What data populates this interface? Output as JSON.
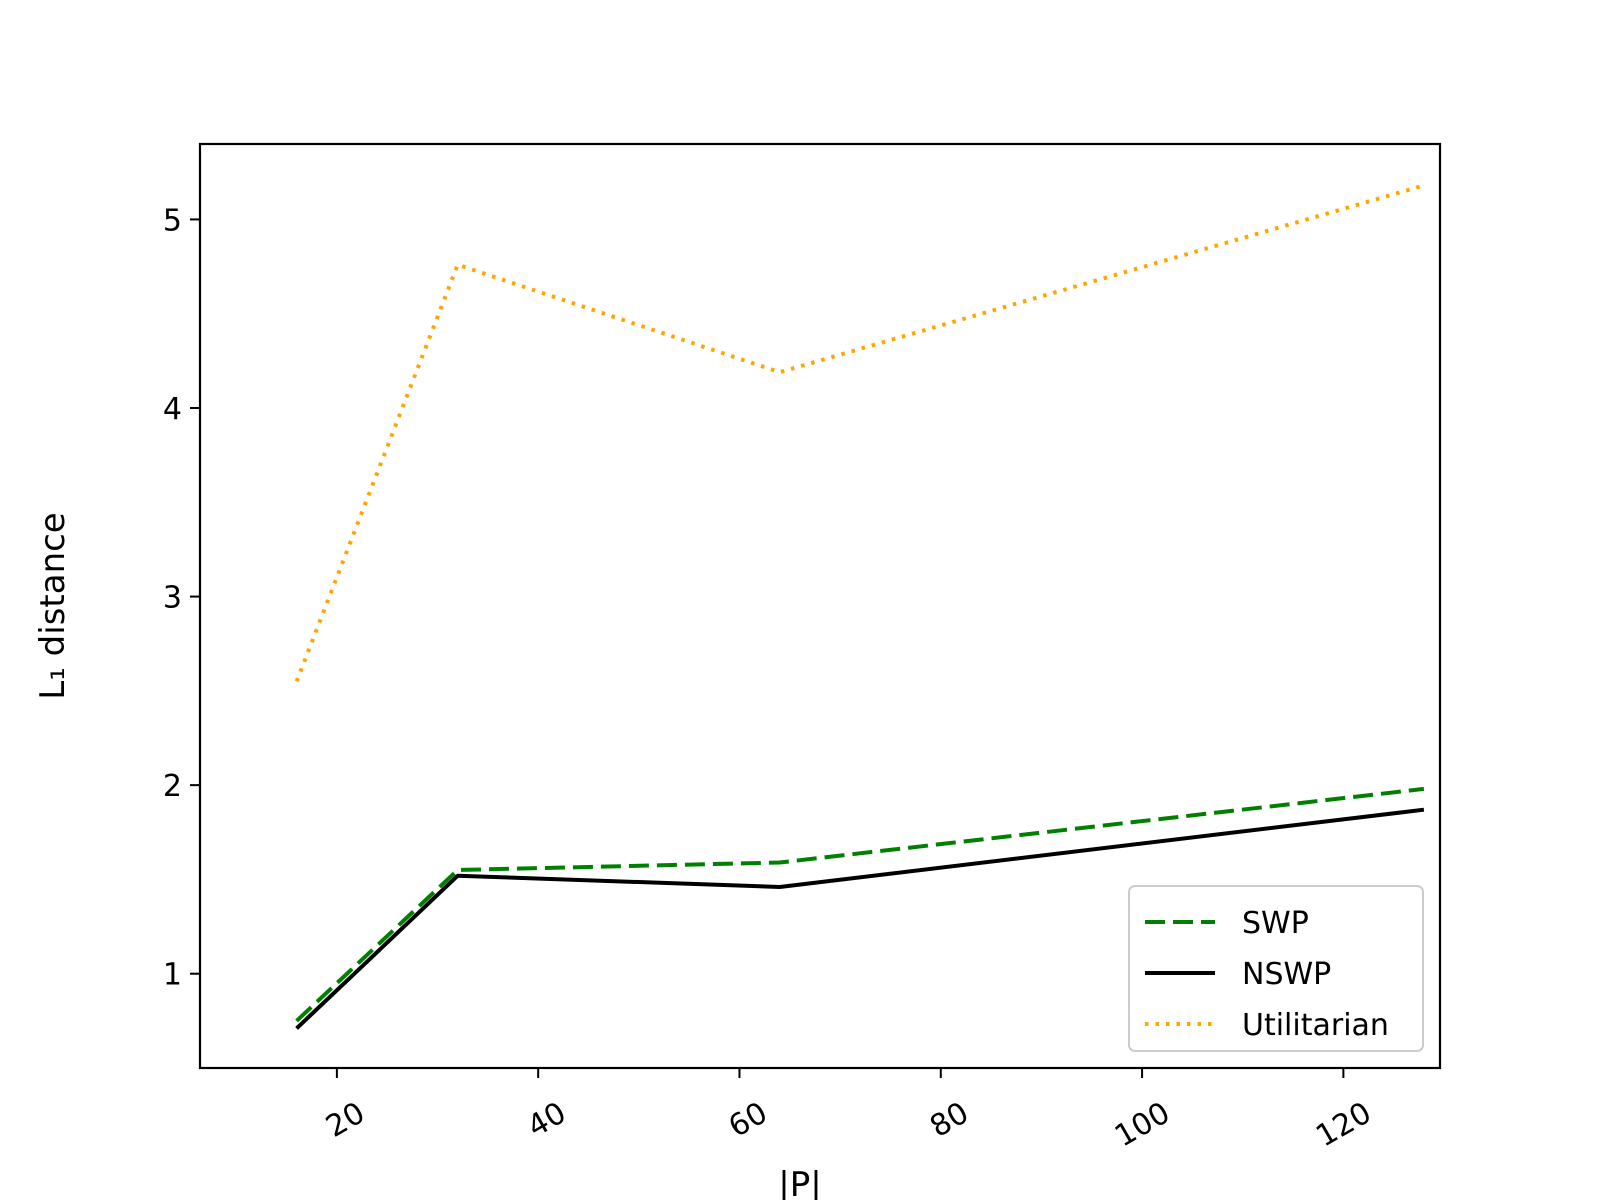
{
  "chart_data": {
    "type": "line",
    "xlabel": "|P|",
    "ylabel": "L₁ distance",
    "x": [
      16,
      32,
      64,
      128
    ],
    "xlim": [
      6.4,
      129.6
    ],
    "ylim": [
      0.5,
      5.4
    ],
    "xticks": [
      20,
      40,
      60,
      80,
      100,
      120
    ],
    "yticks": [
      1,
      2,
      3,
      4,
      5
    ],
    "grid": false,
    "legend_position": "lower-right",
    "series": [
      {
        "name": "SWP",
        "values": [
          0.75,
          1.55,
          1.59,
          1.98
        ],
        "color": "#008000",
        "style": "dashed"
      },
      {
        "name": "NSWP",
        "values": [
          0.71,
          1.52,
          1.46,
          1.87
        ],
        "color": "#000000",
        "style": "solid"
      },
      {
        "name": "Utilitarian",
        "values": [
          2.55,
          4.76,
          4.19,
          5.18
        ],
        "color": "#FFA500",
        "style": "dotted"
      }
    ]
  }
}
